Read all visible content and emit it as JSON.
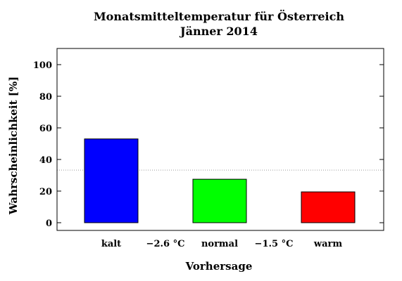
{
  "chart_data": {
    "type": "bar",
    "title": "Monatsmitteltemperatur für Österreich",
    "subtitle": "Jänner 2014",
    "xlabel": "Vorhersage",
    "ylabel": "Wahrscheinlichkeit [%]",
    "ylim": [
      0,
      100
    ],
    "yticks": [
      0,
      20,
      40,
      60,
      80,
      100
    ],
    "categories": [
      "kalt",
      "normal",
      "warm"
    ],
    "values": [
      53,
      27.5,
      19.5
    ],
    "colors": [
      "#0000ff",
      "#00ff00",
      "#ff0000"
    ],
    "thresholds": [
      "−2.6 °C",
      "−1.5 °C"
    ],
    "reference_line": 33.3,
    "grid": false
  }
}
